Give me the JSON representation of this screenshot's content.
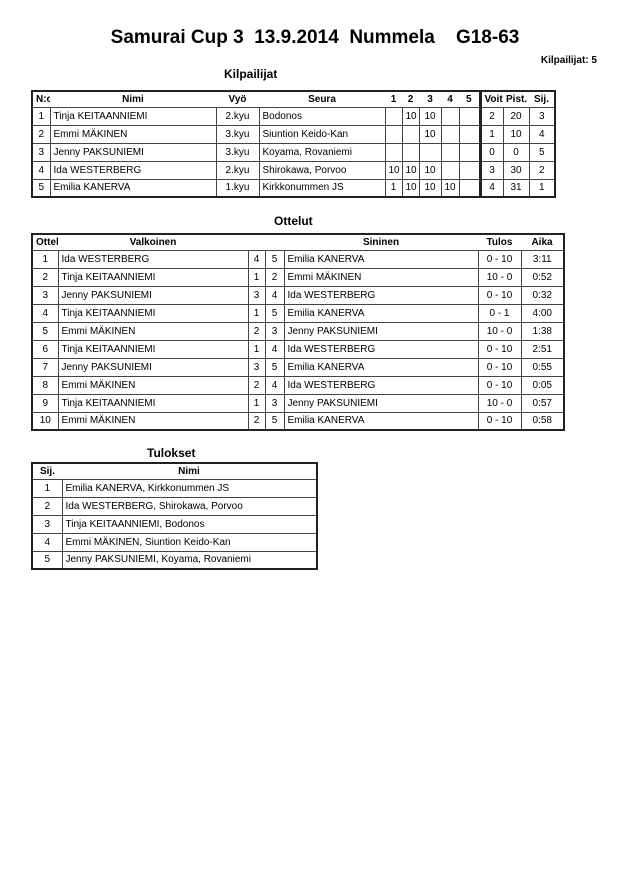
{
  "title": "Samurai Cup 3  13.9.2014  Nummela    G18-63",
  "participant_count": "Kilpailijat: 5",
  "competitors": {
    "heading": "Kilpailijat",
    "headers": [
      "N:o",
      "Nimi",
      "Vyö",
      "Seura",
      "1",
      "2",
      "3",
      "4",
      "5",
      "Voit.",
      "Pist.",
      "Sij."
    ],
    "rows": [
      [
        "1",
        "Tinja KEITAANNIEMI",
        "2.kyu",
        "Bodonos",
        "",
        "10",
        "10",
        "",
        "",
        "2",
        "20",
        "3"
      ],
      [
        "2",
        "Emmi MÄKINEN",
        "3.kyu",
        "Siuntion Keido-Kan",
        "",
        "",
        "10",
        "",
        "",
        "1",
        "10",
        "4"
      ],
      [
        "3",
        "Jenny PAKSUNIEMI",
        "3.kyu",
        "Koyama, Rovaniemi",
        "",
        "",
        "",
        "",
        "",
        "0",
        "0",
        "5"
      ],
      [
        "4",
        "Ida WESTERBERG",
        "2.kyu",
        "Shirokawa, Porvoo",
        "10",
        "10",
        "10",
        "",
        "",
        "3",
        "30",
        "2"
      ],
      [
        "5",
        "Emilia KANERVA",
        "1.kyu",
        "Kirkkonummen JS",
        "1",
        "10",
        "10",
        "10",
        "",
        "4",
        "31",
        "1"
      ]
    ]
  },
  "matches": {
    "heading": "Ottelut",
    "headers": [
      "Ottelu",
      "Valkoinen",
      "",
      "",
      "Sininen",
      "Tulos",
      "Aika"
    ],
    "rows": [
      [
        "1",
        "Ida WESTERBERG",
        "4",
        "5",
        "Emilia KANERVA",
        "0 - 10",
        "3:11"
      ],
      [
        "2",
        "Tinja KEITAANNIEMI",
        "1",
        "2",
        "Emmi MÄKINEN",
        "10 - 0",
        "0:52"
      ],
      [
        "3",
        "Jenny PAKSUNIEMI",
        "3",
        "4",
        "Ida WESTERBERG",
        "0 - 10",
        "0:32"
      ],
      [
        "4",
        "Tinja KEITAANNIEMI",
        "1",
        "5",
        "Emilia KANERVA",
        "0 - 1",
        "4:00"
      ],
      [
        "5",
        "Emmi MÄKINEN",
        "2",
        "3",
        "Jenny PAKSUNIEMI",
        "10 - 0",
        "1:38"
      ],
      [
        "6",
        "Tinja KEITAANNIEMI",
        "1",
        "4",
        "Ida WESTERBERG",
        "0 - 10",
        "2:51"
      ],
      [
        "7",
        "Jenny PAKSUNIEMI",
        "3",
        "5",
        "Emilia KANERVA",
        "0 - 10",
        "0:55"
      ],
      [
        "8",
        "Emmi MÄKINEN",
        "2",
        "4",
        "Ida WESTERBERG",
        "0 - 10",
        "0:05"
      ],
      [
        "9",
        "Tinja KEITAANNIEMI",
        "1",
        "3",
        "Jenny PAKSUNIEMI",
        "10 - 0",
        "0:57"
      ],
      [
        "10",
        "Emmi MÄKINEN",
        "2",
        "5",
        "Emilia KANERVA",
        "0 - 10",
        "0:58"
      ]
    ]
  },
  "results": {
    "heading": "Tulokset",
    "headers": [
      "Sij.",
      "Nimi"
    ],
    "rows": [
      [
        "1",
        "Emilia KANERVA, Kirkkonummen JS"
      ],
      [
        "2",
        "Ida WESTERBERG, Shirokawa, Porvoo"
      ],
      [
        "3",
        "Tinja KEITAANNIEMI, Bodonos"
      ],
      [
        "4",
        "Emmi MÄKINEN, Siuntion Keido-Kan"
      ],
      [
        "5",
        "Jenny PAKSUNIEMI, Koyama, Rovaniemi"
      ]
    ]
  }
}
